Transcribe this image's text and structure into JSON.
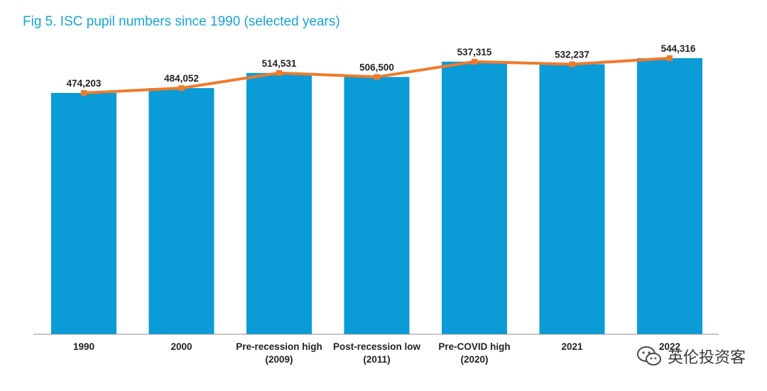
{
  "chart_data": {
    "type": "bar",
    "title": "Fig 5. ISC pupil numbers since 1990 (selected years)",
    "categories": [
      [
        "1990"
      ],
      [
        "2000"
      ],
      [
        "Pre-recession high",
        "(2009)"
      ],
      [
        "Post-recession low",
        "(2011)"
      ],
      [
        "Pre-COVID high",
        "(2020)"
      ],
      [
        "2021"
      ],
      [
        "2022"
      ]
    ],
    "values": [
      474203,
      484052,
      514531,
      506500,
      537315,
      532237,
      544316
    ],
    "value_labels": [
      "474,203",
      "484,052",
      "514,531",
      "506,500",
      "537,315",
      "532,237",
      "544,316"
    ],
    "overlay": "line",
    "xlabel": "",
    "ylabel": "",
    "grid": false,
    "colors": {
      "bar": "#0b9bd7",
      "line": "#f07a2a",
      "title": "#1aa3d9",
      "axis": "#8c8c8c"
    }
  },
  "watermark": {
    "text": "英伦投资客",
    "icon": "wechat-icon"
  }
}
